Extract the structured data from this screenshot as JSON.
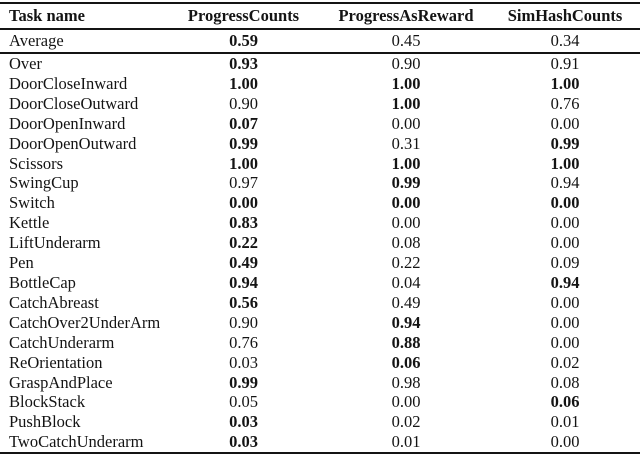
{
  "table": {
    "columns": [
      {
        "label": "Task name"
      },
      {
        "label": "ProgressCounts"
      },
      {
        "label": "ProgressAsReward"
      },
      {
        "label": "SimHashCounts"
      }
    ],
    "summary_row": {
      "task": "Average",
      "values": [
        {
          "value": "0.59",
          "bold": true
        },
        {
          "value": "0.45",
          "bold": false
        },
        {
          "value": "0.34",
          "bold": false
        }
      ]
    },
    "rows": [
      {
        "task": "Over",
        "values": [
          {
            "value": "0.93",
            "bold": true
          },
          {
            "value": "0.90",
            "bold": false
          },
          {
            "value": "0.91",
            "bold": false
          }
        ]
      },
      {
        "task": "DoorCloseInward",
        "values": [
          {
            "value": "1.00",
            "bold": true
          },
          {
            "value": "1.00",
            "bold": true
          },
          {
            "value": "1.00",
            "bold": true
          }
        ]
      },
      {
        "task": "DoorCloseOutward",
        "values": [
          {
            "value": "0.90",
            "bold": false
          },
          {
            "value": "1.00",
            "bold": true
          },
          {
            "value": "0.76",
            "bold": false
          }
        ]
      },
      {
        "task": "DoorOpenInward",
        "values": [
          {
            "value": "0.07",
            "bold": true
          },
          {
            "value": "0.00",
            "bold": false
          },
          {
            "value": "0.00",
            "bold": false
          }
        ]
      },
      {
        "task": "DoorOpenOutward",
        "values": [
          {
            "value": "0.99",
            "bold": true
          },
          {
            "value": "0.31",
            "bold": false
          },
          {
            "value": "0.99",
            "bold": true
          }
        ]
      },
      {
        "task": "Scissors",
        "values": [
          {
            "value": "1.00",
            "bold": true
          },
          {
            "value": "1.00",
            "bold": true
          },
          {
            "value": "1.00",
            "bold": true
          }
        ]
      },
      {
        "task": "SwingCup",
        "values": [
          {
            "value": "0.97",
            "bold": false
          },
          {
            "value": "0.99",
            "bold": true
          },
          {
            "value": "0.94",
            "bold": false
          }
        ]
      },
      {
        "task": "Switch",
        "values": [
          {
            "value": "0.00",
            "bold": true
          },
          {
            "value": "0.00",
            "bold": true
          },
          {
            "value": "0.00",
            "bold": true
          }
        ]
      },
      {
        "task": "Kettle",
        "values": [
          {
            "value": "0.83",
            "bold": true
          },
          {
            "value": "0.00",
            "bold": false
          },
          {
            "value": "0.00",
            "bold": false
          }
        ]
      },
      {
        "task": "LiftUnderarm",
        "values": [
          {
            "value": "0.22",
            "bold": true
          },
          {
            "value": "0.08",
            "bold": false
          },
          {
            "value": "0.00",
            "bold": false
          }
        ]
      },
      {
        "task": "Pen",
        "values": [
          {
            "value": "0.49",
            "bold": true
          },
          {
            "value": "0.22",
            "bold": false
          },
          {
            "value": "0.09",
            "bold": false
          }
        ]
      },
      {
        "task": "BottleCap",
        "values": [
          {
            "value": "0.94",
            "bold": true
          },
          {
            "value": "0.04",
            "bold": false
          },
          {
            "value": "0.94",
            "bold": true
          }
        ]
      },
      {
        "task": "CatchAbreast",
        "values": [
          {
            "value": "0.56",
            "bold": true
          },
          {
            "value": "0.49",
            "bold": false
          },
          {
            "value": "0.00",
            "bold": false
          }
        ]
      },
      {
        "task": "CatchOver2UnderArm",
        "values": [
          {
            "value": "0.90",
            "bold": false
          },
          {
            "value": "0.94",
            "bold": true
          },
          {
            "value": "0.00",
            "bold": false
          }
        ]
      },
      {
        "task": "CatchUnderarm",
        "values": [
          {
            "value": "0.76",
            "bold": false
          },
          {
            "value": "0.88",
            "bold": true
          },
          {
            "value": "0.00",
            "bold": false
          }
        ]
      },
      {
        "task": "ReOrientation",
        "values": [
          {
            "value": "0.03",
            "bold": false
          },
          {
            "value": "0.06",
            "bold": true
          },
          {
            "value": "0.02",
            "bold": false
          }
        ]
      },
      {
        "task": "GraspAndPlace",
        "values": [
          {
            "value": "0.99",
            "bold": true
          },
          {
            "value": "0.98",
            "bold": false
          },
          {
            "value": "0.08",
            "bold": false
          }
        ]
      },
      {
        "task": "BlockStack",
        "values": [
          {
            "value": "0.05",
            "bold": false
          },
          {
            "value": "0.00",
            "bold": false
          },
          {
            "value": "0.06",
            "bold": true
          }
        ]
      },
      {
        "task": "PushBlock",
        "values": [
          {
            "value": "0.03",
            "bold": true
          },
          {
            "value": "0.02",
            "bold": false
          },
          {
            "value": "0.01",
            "bold": false
          }
        ]
      },
      {
        "task": "TwoCatchUnderarm",
        "values": [
          {
            "value": "0.03",
            "bold": true
          },
          {
            "value": "0.01",
            "bold": false
          },
          {
            "value": "0.00",
            "bold": false
          }
        ]
      }
    ]
  },
  "colors": {
    "text": "#141414",
    "rule": "#141414",
    "background": "#ffffff"
  }
}
